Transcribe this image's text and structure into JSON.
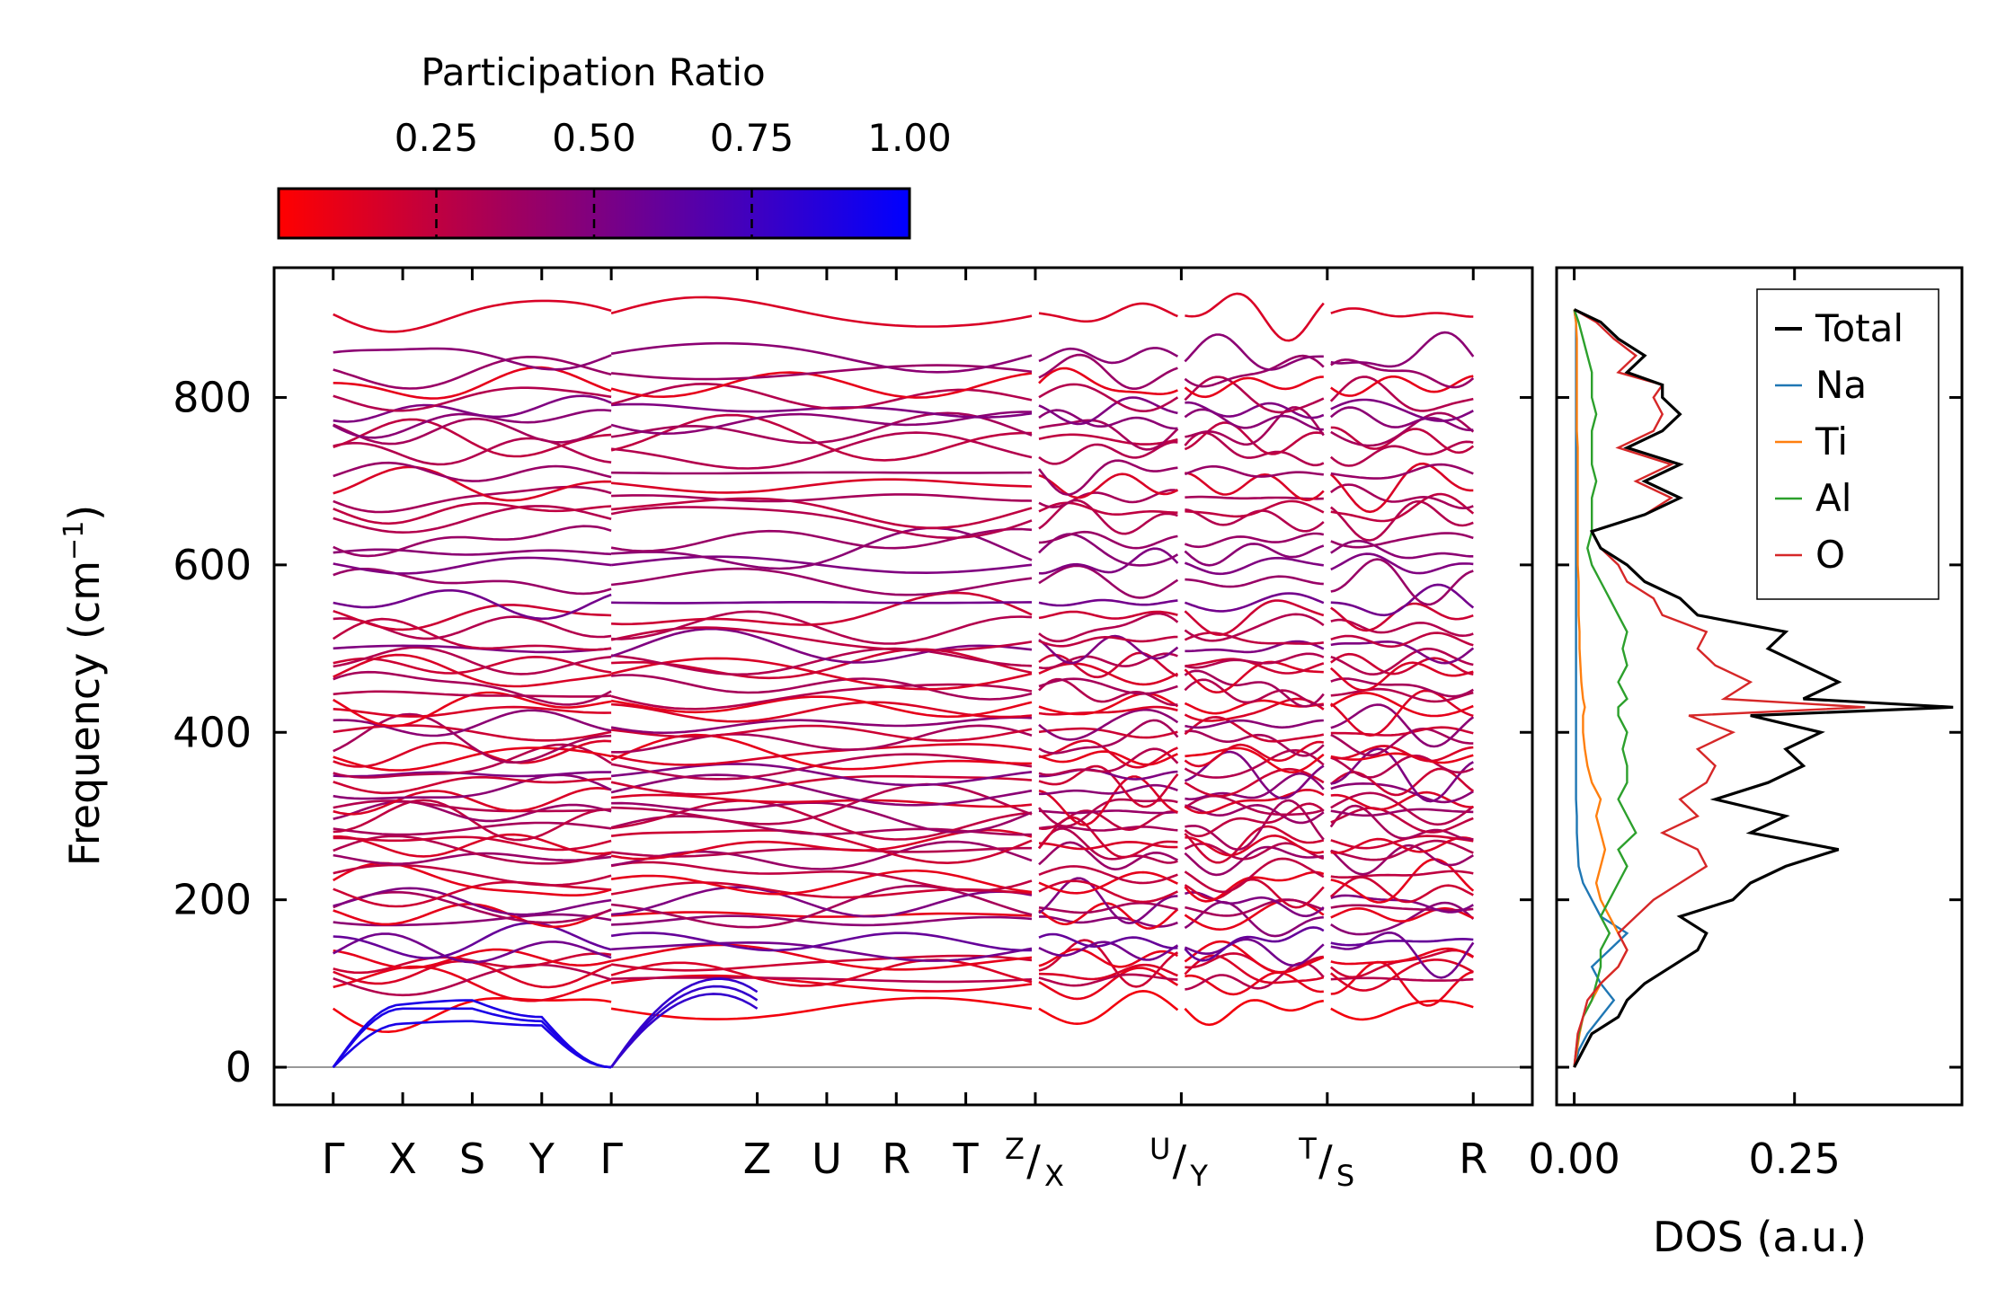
{
  "chart_data": [
    {
      "type": "line",
      "panel": "phonon-band-structure",
      "ylabel": "Frequency (cm",
      "ylabel_sup": "−1",
      "ylabel_end": ")",
      "ylim": [
        -45,
        955
      ],
      "yticks": [
        0,
        200,
        400,
        600,
        800
      ],
      "ytick_labels": [
        "0",
        "200",
        "400",
        "600",
        "800"
      ],
      "path_segments": [
        {
          "labels": [
            "Γ",
            "X",
            "S",
            "Y",
            "Γ"
          ],
          "x": [
            0,
            1,
            2,
            3,
            4
          ]
        },
        {
          "labels": [
            "Γ",
            "Z",
            "U",
            "R",
            "T",
            "Z"
          ],
          "x": [
            4,
            6.1,
            7.1,
            8.1,
            9.1,
            10.1
          ]
        },
        {
          "labels": [
            "X",
            "U"
          ],
          "x": [
            10.1,
            12.2
          ]
        },
        {
          "labels": [
            "Y",
            "T"
          ],
          "x": [
            12.2,
            14.3
          ]
        },
        {
          "labels": [
            "S",
            "R"
          ],
          "x": [
            14.3,
            16.4
          ]
        }
      ],
      "xlim": [
        -0.85,
        17.25
      ],
      "xtick_positions": [
        0,
        1,
        2,
        3,
        4,
        6.1,
        7.1,
        8.1,
        9.1,
        10.1,
        12.2,
        14.3,
        16.4
      ],
      "xtick_labels_plain": [
        {
          "x": 0,
          "label": "Γ"
        },
        {
          "x": 1,
          "label": "X"
        },
        {
          "x": 2,
          "label": "S"
        },
        {
          "x": 3,
          "label": "Y"
        },
        {
          "x": 4,
          "label": "Γ"
        },
        {
          "x": 6.1,
          "label": "Z"
        },
        {
          "x": 7.1,
          "label": "U"
        },
        {
          "x": 8.1,
          "label": "R"
        },
        {
          "x": 9.1,
          "label": "T"
        },
        {
          "x": 16.4,
          "label": "R"
        }
      ],
      "xtick_labels_split": [
        {
          "x": 10.1,
          "top": "Z",
          "bottom": "X"
        },
        {
          "x": 12.2,
          "top": "U",
          "bottom": "Y"
        },
        {
          "x": 14.3,
          "top": "T",
          "bottom": "S"
        }
      ],
      "zero_line": 0,
      "colorbar": {
        "title": "Participation Ratio",
        "range": [
          0.0,
          1.0
        ],
        "color_low": "#ff0000",
        "color_high": "#0000ff",
        "ticks": [
          0.25,
          0.5,
          0.75,
          1.0
        ],
        "tick_labels": [
          "0.25",
          "0.50",
          "0.75",
          "1.00"
        ]
      },
      "mode_frequency_levels": [
        70,
        100,
        105,
        112,
        125,
        130,
        140,
        150,
        175,
        182,
        190,
        197,
        210,
        220,
        230,
        250,
        258,
        265,
        270,
        285,
        295,
        305,
        310,
        318,
        330,
        340,
        350,
        360,
        370,
        375,
        390,
        400,
        410,
        425,
        432,
        445,
        455,
        470,
        480,
        485,
        500,
        510,
        525,
        540,
        555,
        580,
        600,
        615,
        630,
        655,
        665,
        680,
        695,
        710,
        735,
        750,
        760,
        772,
        785,
        800,
        815,
        830,
        850,
        900
      ],
      "mode_participation_ratio": [
        0.05,
        0.1,
        0.3,
        0.15,
        0.2,
        0.1,
        0.55,
        0.6,
        0.45,
        0.1,
        0.35,
        0.5,
        0.2,
        0.1,
        0.25,
        0.4,
        0.3,
        0.15,
        0.2,
        0.35,
        0.25,
        0.4,
        0.3,
        0.15,
        0.45,
        0.2,
        0.5,
        0.3,
        0.1,
        0.15,
        0.35,
        0.2,
        0.45,
        0.15,
        0.1,
        0.3,
        0.35,
        0.15,
        0.2,
        0.3,
        0.5,
        0.25,
        0.3,
        0.2,
        0.55,
        0.4,
        0.5,
        0.45,
        0.4,
        0.3,
        0.25,
        0.35,
        0.15,
        0.4,
        0.3,
        0.25,
        0.35,
        0.45,
        0.5,
        0.3,
        0.1,
        0.4,
        0.45,
        0.15
      ],
      "acoustic_endpoints": {
        "gamma": [
          0,
          0,
          0
        ],
        "x_point": [
          52,
          70,
          75
        ],
        "s_point": [
          55,
          70,
          80
        ],
        "y_point": [
          50,
          55,
          60
        ],
        "z_point": [
          70,
          80,
          90
        ]
      }
    },
    {
      "type": "line",
      "panel": "density-of-states",
      "xlabel": "DOS (a.u.)",
      "xlim": [
        -0.02,
        0.44
      ],
      "xticks": [
        0.0,
        0.25
      ],
      "xtick_labels": [
        "0.00",
        "0.25"
      ],
      "ylim": [
        -45,
        955
      ],
      "legend_position": "top-right",
      "series": [
        {
          "name": "Total",
          "color": "#000000"
        },
        {
          "name": "Na",
          "color": "#1f77b4"
        },
        {
          "name": "Ti",
          "color": "#ff7f0e"
        },
        {
          "name": "Al",
          "color": "#2ca02c"
        },
        {
          "name": "O",
          "color": "#d62728"
        }
      ],
      "freq": [
        0,
        20,
        40,
        60,
        80,
        100,
        120,
        140,
        160,
        180,
        200,
        220,
        240,
        260,
        280,
        300,
        320,
        340,
        360,
        380,
        400,
        420,
        430,
        440,
        460,
        480,
        500,
        520,
        540,
        560,
        580,
        600,
        620,
        640,
        660,
        680,
        700,
        720,
        740,
        760,
        780,
        800,
        815,
        830,
        850,
        870,
        890,
        905
      ],
      "Total": [
        0.0,
        0.01,
        0.02,
        0.05,
        0.06,
        0.08,
        0.11,
        0.14,
        0.15,
        0.12,
        0.18,
        0.2,
        0.24,
        0.3,
        0.2,
        0.24,
        0.16,
        0.22,
        0.26,
        0.24,
        0.28,
        0.2,
        0.43,
        0.26,
        0.3,
        0.26,
        0.22,
        0.24,
        0.14,
        0.12,
        0.08,
        0.06,
        0.03,
        0.02,
        0.08,
        0.12,
        0.08,
        0.12,
        0.06,
        0.1,
        0.12,
        0.1,
        0.1,
        0.06,
        0.08,
        0.05,
        0.03,
        0.0
      ],
      "Na": [
        0.0,
        0.005,
        0.015,
        0.03,
        0.045,
        0.03,
        0.02,
        0.04,
        0.06,
        0.03,
        0.02,
        0.01,
        0.005,
        0.004,
        0.003,
        0.003,
        0.002,
        0.002,
        0.002,
        0.002,
        0.002,
        0.002,
        0.002,
        0.002,
        0.002,
        0.002,
        0.002,
        0.002,
        0.002,
        0.002,
        0.002,
        0.002,
        0.002,
        0.002,
        0.002,
        0.002,
        0.002,
        0.002,
        0.002,
        0.002,
        0.002,
        0.002,
        0.002,
        0.002,
        0.002,
        0.002,
        0.002,
        0.0
      ],
      "Ti": [
        0.0,
        0.003,
        0.006,
        0.01,
        0.02,
        0.03,
        0.05,
        0.06,
        0.05,
        0.04,
        0.03,
        0.025,
        0.03,
        0.035,
        0.03,
        0.025,
        0.03,
        0.02,
        0.015,
        0.012,
        0.01,
        0.01,
        0.012,
        0.01,
        0.008,
        0.007,
        0.006,
        0.006,
        0.005,
        0.005,
        0.005,
        0.004,
        0.004,
        0.004,
        0.004,
        0.004,
        0.004,
        0.004,
        0.004,
        0.003,
        0.003,
        0.003,
        0.003,
        0.003,
        0.003,
        0.003,
        0.002,
        0.0
      ],
      "Al": [
        0.0,
        0.002,
        0.005,
        0.01,
        0.02,
        0.025,
        0.03,
        0.03,
        0.04,
        0.03,
        0.04,
        0.05,
        0.06,
        0.05,
        0.07,
        0.06,
        0.05,
        0.06,
        0.06,
        0.055,
        0.06,
        0.05,
        0.05,
        0.06,
        0.05,
        0.06,
        0.055,
        0.06,
        0.05,
        0.04,
        0.03,
        0.02,
        0.015,
        0.02,
        0.02,
        0.02,
        0.025,
        0.02,
        0.02,
        0.02,
        0.025,
        0.02,
        0.02,
        0.02,
        0.015,
        0.01,
        0.005,
        0.0
      ],
      "O": [
        0.0,
        0.002,
        0.004,
        0.01,
        0.015,
        0.03,
        0.05,
        0.06,
        0.05,
        0.07,
        0.09,
        0.12,
        0.15,
        0.14,
        0.1,
        0.14,
        0.12,
        0.15,
        0.16,
        0.14,
        0.18,
        0.13,
        0.33,
        0.17,
        0.2,
        0.16,
        0.14,
        0.15,
        0.1,
        0.09,
        0.06,
        0.05,
        0.03,
        0.02,
        0.08,
        0.11,
        0.07,
        0.11,
        0.05,
        0.09,
        0.1,
        0.09,
        0.1,
        0.05,
        0.07,
        0.045,
        0.025,
        0.0
      ]
    }
  ]
}
